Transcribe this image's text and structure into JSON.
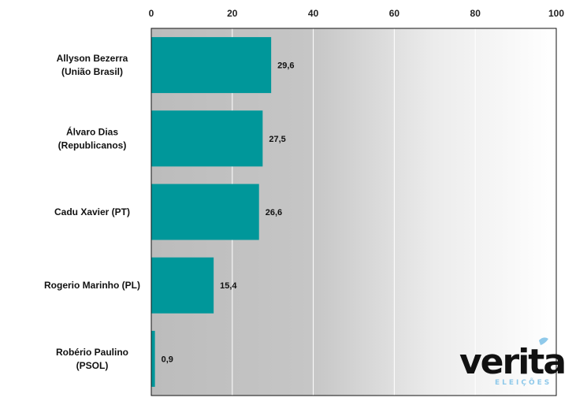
{
  "chart_data": {
    "type": "bar",
    "orientation": "horizontal",
    "title": "",
    "xlabel": "",
    "ylabel": "",
    "xlim": [
      0,
      100
    ],
    "ticks": [
      "0",
      "20",
      "40",
      "60",
      "80",
      "100"
    ],
    "tick_values": [
      0,
      20,
      40,
      60,
      80,
      100
    ],
    "categories": [
      [
        "Allyson Bezerra",
        "(União Brasil)"
      ],
      [
        "Álvaro Dias",
        "(Republicanos)"
      ],
      [
        "Cadu Xavier (PT)"
      ],
      [
        "Rogerio Marinho (PL)"
      ],
      [
        "Robério Paulino",
        "(PSOL)"
      ]
    ],
    "values": [
      29.6,
      27.5,
      26.6,
      15.4,
      0.9
    ],
    "value_labels": [
      "29,6",
      "27,5",
      "26,6",
      "15,4",
      "0,9"
    ],
    "bar_color": "#00979a",
    "background_gradient": [
      "#bdbdbd",
      "#ffffff"
    ],
    "grid": true
  },
  "logo": {
    "name": "verita",
    "sub": "ELEIÇÕES"
  }
}
